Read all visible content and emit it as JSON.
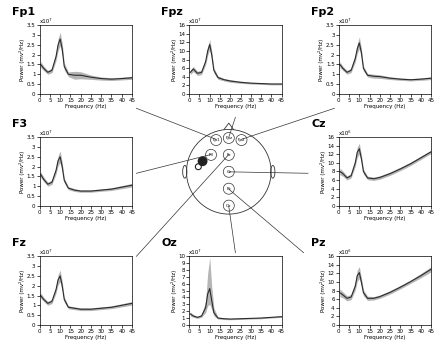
{
  "chart_data": [
    {
      "type": "line",
      "title": "Fp1",
      "x_label": "Frequency (Hz)",
      "y_label": "Power (mv²/Hz)",
      "annotation": "x10⁷",
      "x": [
        0.5,
        2,
        4,
        6,
        8,
        9,
        10,
        11,
        12,
        14,
        17,
        20,
        25,
        30,
        35,
        40,
        45
      ],
      "xlim": [
        0,
        45
      ],
      "xticks": [
        0,
        5,
        10,
        15,
        20,
        25,
        30,
        35,
        40,
        45
      ],
      "ylim": [
        0,
        3.5
      ],
      "yticks": [
        0,
        0.5,
        1,
        1.5,
        2,
        2.5,
        3,
        3.5
      ],
      "series": [
        {
          "color": "#2b2b2b",
          "values": [
            1.5,
            1.3,
            1.1,
            1.2,
            1.9,
            2.5,
            2.8,
            2.3,
            1.4,
            1.0,
            0.95,
            0.95,
            0.85,
            0.78,
            0.75,
            0.78,
            0.82
          ],
          "lower": [
            1.35,
            1.18,
            1.0,
            1.08,
            1.7,
            2.2,
            2.45,
            2.0,
            1.22,
            0.88,
            0.75,
            0.77,
            0.74,
            0.7,
            0.68,
            0.71,
            0.74
          ],
          "upper": [
            1.65,
            1.42,
            1.2,
            1.32,
            2.1,
            2.8,
            3.15,
            2.6,
            1.58,
            1.12,
            1.15,
            1.13,
            0.96,
            0.86,
            0.82,
            0.85,
            0.9
          ]
        }
      ]
    },
    {
      "type": "line",
      "title": "Fpz",
      "x_label": "Frequency (Hz)",
      "y_label": "Power (mv²/Hz)",
      "annotation": "x10⁷",
      "x": [
        0.5,
        2,
        4,
        6,
        8,
        9,
        10,
        11,
        12,
        14,
        17,
        20,
        25,
        30,
        35,
        40,
        45
      ],
      "xlim": [
        0,
        45
      ],
      "xticks": [
        0,
        5,
        10,
        15,
        20,
        25,
        30,
        35,
        40,
        45
      ],
      "ylim": [
        0,
        16
      ],
      "yticks": [
        0,
        2,
        4,
        6,
        8,
        10,
        12,
        14,
        16
      ],
      "series": [
        {
          "color": "#2b2b2b",
          "values": [
            5,
            5.8,
            4.8,
            5,
            7.5,
            10,
            11.5,
            9,
            5.5,
            3.8,
            3.3,
            3.0,
            2.7,
            2.5,
            2.4,
            2.3,
            2.3
          ],
          "lower": [
            4.5,
            5.2,
            4.3,
            4.5,
            6.8,
            9,
            10.3,
            8,
            4.9,
            3.4,
            3.0,
            2.7,
            2.45,
            2.3,
            2.2,
            2.1,
            2.1
          ],
          "upper": [
            5.5,
            6.4,
            5.3,
            5.5,
            8.2,
            11,
            12.7,
            10,
            6.1,
            4.2,
            3.6,
            3.3,
            2.95,
            2.7,
            2.6,
            2.5,
            2.5
          ]
        }
      ]
    },
    {
      "type": "line",
      "title": "Fp2",
      "x_label": "Frequency (Hz)",
      "y_label": "Power (mv²/Hz)",
      "annotation": "x10⁷",
      "x": [
        0.5,
        2,
        4,
        6,
        8,
        9,
        10,
        11,
        12,
        14,
        17,
        20,
        25,
        30,
        35,
        40,
        45
      ],
      "xlim": [
        0,
        45
      ],
      "xticks": [
        0,
        5,
        10,
        15,
        20,
        25,
        30,
        35,
        40,
        45
      ],
      "ylim": [
        0,
        3.5
      ],
      "yticks": [
        0,
        0.5,
        1,
        1.5,
        2,
        2.5,
        3,
        3.5
      ],
      "series": [
        {
          "color": "#2b2b2b",
          "values": [
            1.5,
            1.3,
            1.1,
            1.2,
            1.8,
            2.3,
            2.6,
            2.1,
            1.3,
            0.95,
            0.9,
            0.88,
            0.8,
            0.75,
            0.72,
            0.75,
            0.8
          ],
          "lower": [
            1.36,
            1.19,
            1.0,
            1.09,
            1.62,
            2.05,
            2.3,
            1.87,
            1.17,
            0.86,
            0.8,
            0.79,
            0.73,
            0.69,
            0.66,
            0.69,
            0.73
          ],
          "upper": [
            1.64,
            1.41,
            1.2,
            1.31,
            1.98,
            2.55,
            2.9,
            2.33,
            1.43,
            1.04,
            1.0,
            0.97,
            0.87,
            0.81,
            0.78,
            0.81,
            0.87
          ]
        }
      ]
    },
    {
      "type": "line",
      "title": "F3",
      "x_label": "Frequency (Hz)",
      "y_label": "Power (mv²/Hz)",
      "annotation": "x10⁷",
      "x": [
        0.5,
        2,
        4,
        6,
        8,
        9,
        10,
        11,
        12,
        14,
        17,
        20,
        25,
        30,
        35,
        40,
        45
      ],
      "xlim": [
        0,
        45
      ],
      "xticks": [
        0,
        5,
        10,
        15,
        20,
        25,
        30,
        35,
        40,
        45
      ],
      "ylim": [
        0,
        3.5
      ],
      "yticks": [
        0,
        0.5,
        1,
        1.5,
        2,
        2.5,
        3,
        3.5
      ],
      "series": [
        {
          "color": "#2b2b2b",
          "values": [
            1.6,
            1.35,
            1.1,
            1.2,
            1.8,
            2.3,
            2.5,
            2.0,
            1.3,
            0.9,
            0.8,
            0.75,
            0.75,
            0.8,
            0.85,
            0.95,
            1.05
          ],
          "lower": [
            1.45,
            1.23,
            1.0,
            1.09,
            1.62,
            2.05,
            2.2,
            1.78,
            1.17,
            0.82,
            0.73,
            0.69,
            0.69,
            0.74,
            0.78,
            0.87,
            0.96
          ],
          "upper": [
            1.75,
            1.47,
            1.2,
            1.31,
            1.98,
            2.55,
            2.8,
            2.22,
            1.43,
            0.98,
            0.87,
            0.81,
            0.81,
            0.86,
            0.92,
            1.03,
            1.14
          ]
        }
      ]
    },
    {
      "type": "line",
      "title": "Cz",
      "x_label": "Frequency (Hz)",
      "y_label": "Power (mv²/Hz)",
      "annotation": "x10⁶",
      "x": [
        0.5,
        2,
        4,
        6,
        8,
        9,
        10,
        11,
        12,
        14,
        17,
        20,
        25,
        30,
        35,
        40,
        45
      ],
      "xlim": [
        0,
        45
      ],
      "xticks": [
        0,
        5,
        10,
        15,
        20,
        25,
        30,
        35,
        40,
        45
      ],
      "ylim": [
        0,
        16
      ],
      "yticks": [
        0,
        2,
        4,
        6,
        8,
        10,
        12,
        14,
        16
      ],
      "series": [
        {
          "color": "#2b2b2b",
          "values": [
            8,
            7.5,
            6.5,
            7,
            10,
            12.5,
            13.3,
            11,
            8,
            6.5,
            6.3,
            6.6,
            7.5,
            8.6,
            9.8,
            11.2,
            12.6
          ],
          "lower": [
            7.2,
            6.9,
            6.0,
            6.5,
            9.2,
            11.3,
            12.0,
            10.1,
            7.4,
            6.1,
            5.9,
            6.2,
            7.1,
            8.2,
            9.4,
            10.8,
            12.2
          ],
          "upper": [
            8.8,
            8.1,
            7.0,
            7.5,
            10.8,
            13.7,
            14.6,
            11.9,
            8.6,
            6.9,
            6.7,
            7.0,
            7.9,
            9.0,
            10.2,
            11.6,
            13.0
          ]
        }
      ]
    },
    {
      "type": "line",
      "title": "Fz",
      "x_label": "Frequency (Hz)",
      "y_label": "Power (mv²/Hz)",
      "annotation": "x10⁷",
      "x": [
        0.5,
        2,
        4,
        6,
        8,
        9,
        10,
        11,
        12,
        14,
        17,
        20,
        25,
        30,
        35,
        40,
        45
      ],
      "xlim": [
        0,
        45
      ],
      "xticks": [
        0,
        5,
        10,
        15,
        20,
        25,
        30,
        35,
        40,
        45
      ],
      "ylim": [
        0,
        3.5
      ],
      "yticks": [
        0,
        0.5,
        1,
        1.5,
        2,
        2.5,
        3,
        3.5
      ],
      "series": [
        {
          "color": "#2b2b2b",
          "values": [
            1.5,
            1.3,
            1.1,
            1.2,
            1.8,
            2.3,
            2.5,
            2.0,
            1.3,
            0.9,
            0.85,
            0.8,
            0.8,
            0.85,
            0.9,
            1.0,
            1.1
          ],
          "lower": [
            1.36,
            1.19,
            1.0,
            1.09,
            1.62,
            2.05,
            2.2,
            1.78,
            1.17,
            0.82,
            0.78,
            0.73,
            0.73,
            0.78,
            0.83,
            0.92,
            1.01
          ],
          "upper": [
            1.64,
            1.41,
            1.2,
            1.31,
            1.98,
            2.55,
            2.8,
            2.22,
            1.43,
            0.98,
            0.92,
            0.87,
            0.87,
            0.92,
            0.97,
            1.08,
            1.19
          ]
        }
      ]
    },
    {
      "type": "line",
      "title": "Oz",
      "x_label": "Frequency (Hz)",
      "y_label": "Power (mv²/Hz)",
      "annotation": "x10⁷",
      "x": [
        0.5,
        2,
        4,
        6,
        8,
        9,
        10,
        11,
        12,
        14,
        17,
        20,
        25,
        30,
        35,
        40,
        45
      ],
      "xlim": [
        0,
        45
      ],
      "xticks": [
        0,
        5,
        10,
        15,
        20,
        25,
        30,
        35,
        40,
        45
      ],
      "ylim": [
        0,
        10
      ],
      "yticks": [
        0,
        1,
        2,
        3,
        4,
        5,
        6,
        7,
        8,
        9,
        10
      ],
      "series": [
        {
          "color": "#2b2b2b",
          "values": [
            1.6,
            1.3,
            1.1,
            1.3,
            2.5,
            4.5,
            5.3,
            3.5,
            1.8,
            1.0,
            0.9,
            0.85,
            0.9,
            0.95,
            1.0,
            1.1,
            1.2
          ],
          "lower": [
            1.3,
            1.1,
            0.95,
            1.1,
            1.8,
            2.8,
            3.0,
            2.2,
            1.3,
            0.85,
            0.78,
            0.75,
            0.8,
            0.85,
            0.9,
            1.0,
            1.1
          ],
          "upper": [
            1.9,
            1.5,
            1.25,
            1.5,
            3.5,
            7.5,
            9.8,
            5.5,
            2.5,
            1.15,
            1.02,
            0.95,
            1.0,
            1.05,
            1.1,
            1.2,
            1.3
          ]
        }
      ]
    },
    {
      "type": "line",
      "title": "Pz",
      "x_label": "Frequency (Hz)",
      "y_label": "Power (mv²/Hz)",
      "annotation": "x10⁶",
      "x": [
        0.5,
        2,
        4,
        6,
        8,
        9,
        10,
        11,
        12,
        14,
        17,
        20,
        25,
        30,
        35,
        40,
        45
      ],
      "xlim": [
        0,
        45
      ],
      "xticks": [
        0,
        5,
        10,
        15,
        20,
        25,
        30,
        35,
        40,
        45
      ],
      "ylim": [
        0,
        16
      ],
      "yticks": [
        0,
        2,
        4,
        6,
        8,
        10,
        12,
        14,
        16
      ],
      "series": [
        {
          "color": "#2b2b2b",
          "values": [
            7.5,
            7,
            6.2,
            6.5,
            9,
            11.5,
            12.2,
            10,
            7.5,
            6.2,
            6.2,
            6.6,
            7.6,
            8.8,
            10.1,
            11.5,
            13
          ],
          "lower": [
            6.6,
            6.3,
            5.6,
            5.9,
            8.1,
            10.2,
            10.8,
            9.0,
            6.8,
            5.7,
            5.8,
            6.2,
            7.2,
            8.4,
            9.7,
            11.0,
            12.4
          ],
          "upper": [
            8.4,
            7.7,
            6.8,
            7.1,
            9.9,
            12.8,
            13.6,
            11.0,
            8.2,
            6.7,
            6.6,
            7.0,
            8.0,
            9.2,
            10.5,
            12.0,
            13.6
          ]
        }
      ]
    }
  ],
  "head": {
    "electrodes": [
      "Fp1",
      "Fpz",
      "Fp2",
      "F3",
      "Fz",
      "Cz",
      "Pz",
      "Oz"
    ]
  }
}
